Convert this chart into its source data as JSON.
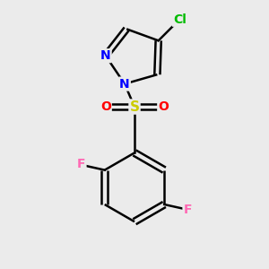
{
  "bg_color": "#ebebeb",
  "bond_width": 1.8,
  "atom_colors": {
    "Cl": "#00bb00",
    "N": "#0000ff",
    "S": "#cccc00",
    "O": "#ff0000",
    "F": "#ff69b4",
    "C": "#000000"
  },
  "font_size": 9,
  "xlim": [
    -1.8,
    1.8
  ],
  "ylim": [
    -2.6,
    2.2
  ]
}
